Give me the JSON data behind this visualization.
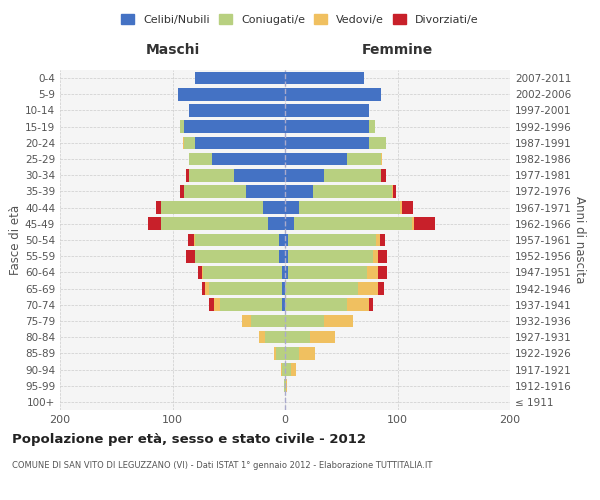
{
  "age_groups": [
    "100+",
    "95-99",
    "90-94",
    "85-89",
    "80-84",
    "75-79",
    "70-74",
    "65-69",
    "60-64",
    "55-59",
    "50-54",
    "45-49",
    "40-44",
    "35-39",
    "30-34",
    "25-29",
    "20-24",
    "15-19",
    "10-14",
    "5-9",
    "0-4"
  ],
  "birth_years": [
    "≤ 1911",
    "1912-1916",
    "1917-1921",
    "1922-1926",
    "1927-1931",
    "1932-1936",
    "1937-1941",
    "1942-1946",
    "1947-1951",
    "1952-1956",
    "1957-1961",
    "1962-1966",
    "1967-1971",
    "1972-1976",
    "1977-1981",
    "1982-1986",
    "1987-1991",
    "1992-1996",
    "1997-2001",
    "2002-2006",
    "2007-2011"
  ],
  "males": {
    "celibi": [
      0,
      0,
      0,
      0,
      0,
      0,
      3,
      3,
      3,
      5,
      5,
      15,
      20,
      35,
      45,
      65,
      80,
      90,
      85,
      95,
      80
    ],
    "coniugati": [
      0,
      1,
      3,
      8,
      18,
      30,
      55,
      65,
      70,
      75,
      75,
      95,
      90,
      55,
      40,
      20,
      10,
      3,
      0,
      0,
      0
    ],
    "vedovi": [
      0,
      0,
      1,
      2,
      5,
      8,
      5,
      3,
      1,
      0,
      1,
      0,
      0,
      0,
      0,
      0,
      1,
      0,
      0,
      0,
      0
    ],
    "divorziati": [
      0,
      0,
      0,
      0,
      0,
      0,
      5,
      3,
      3,
      8,
      5,
      12,
      5,
      3,
      3,
      0,
      0,
      0,
      0,
      0,
      0
    ]
  },
  "females": {
    "nubili": [
      0,
      0,
      0,
      0,
      0,
      0,
      0,
      0,
      3,
      3,
      3,
      8,
      12,
      25,
      35,
      55,
      75,
      75,
      75,
      85,
      70
    ],
    "coniugate": [
      0,
      1,
      5,
      12,
      22,
      35,
      55,
      65,
      70,
      75,
      78,
      105,
      90,
      70,
      50,
      30,
      15,
      5,
      0,
      0,
      0
    ],
    "vedove": [
      0,
      1,
      5,
      15,
      22,
      25,
      20,
      18,
      10,
      5,
      3,
      2,
      2,
      1,
      0,
      1,
      0,
      0,
      0,
      0,
      0
    ],
    "divorziate": [
      0,
      0,
      0,
      0,
      0,
      0,
      3,
      5,
      8,
      8,
      5,
      18,
      10,
      3,
      5,
      0,
      0,
      0,
      0,
      0,
      0
    ]
  },
  "colors": {
    "celibi": "#4472c4",
    "coniugati": "#b8d080",
    "vedovi": "#f0c060",
    "divorziati": "#c8202a"
  },
  "title": "Popolazione per età, sesso e stato civile - 2012",
  "subtitle": "COMUNE DI SAN VITO DI LEGUZZANO (VI) - Dati ISTAT 1° gennaio 2012 - Elaborazione TUTTITALIA.IT",
  "xlabel_left": "Maschi",
  "xlabel_right": "Femmine",
  "ylabel_left": "Fasce di età",
  "ylabel_right": "Anni di nascita",
  "xlim": 200,
  "legend_labels": [
    "Celibi/Nubili",
    "Coniugati/e",
    "Vedovi/e",
    "Divorziati/e"
  ],
  "bg_color": "#f5f5f5",
  "grid_color": "#cccccc"
}
